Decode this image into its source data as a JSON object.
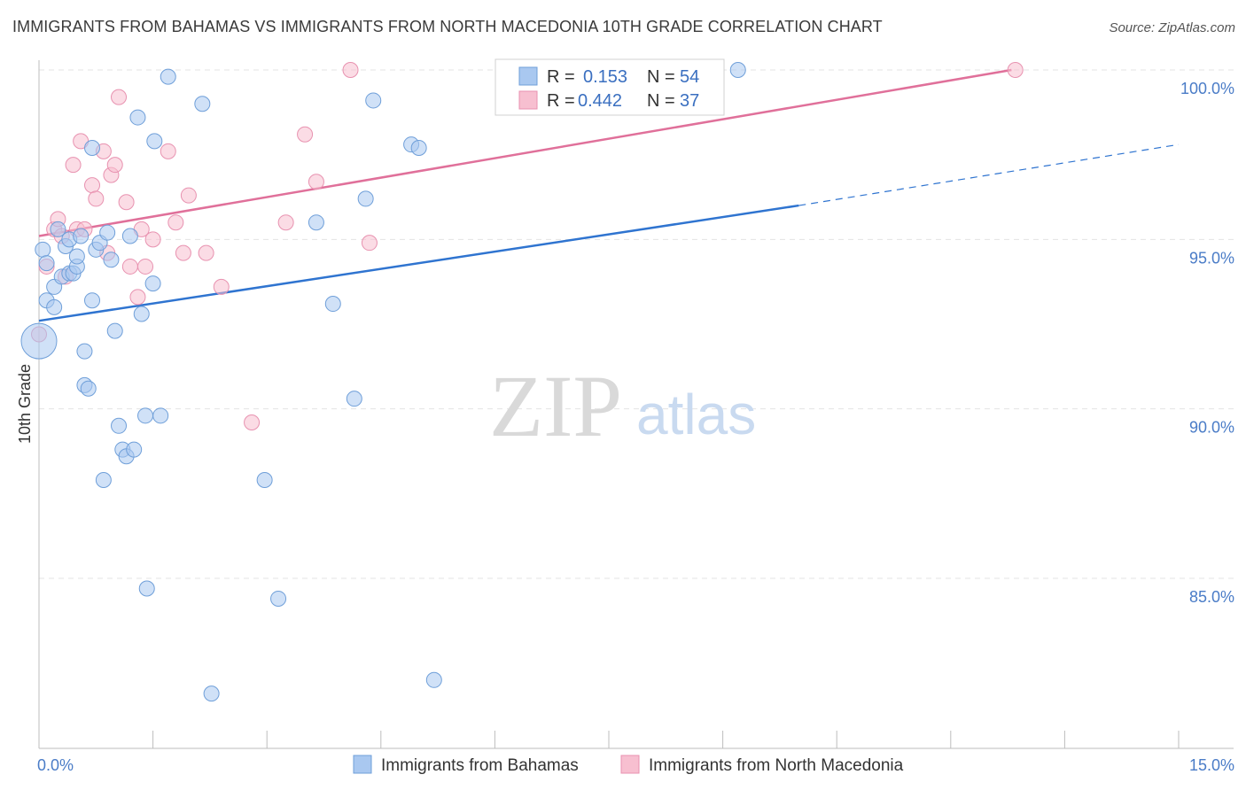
{
  "title": "IMMIGRANTS FROM BAHAMAS VS IMMIGRANTS FROM NORTH MACEDONIA 10TH GRADE CORRELATION CHART",
  "source": "Source: ZipAtlas.com",
  "watermark": {
    "zip": "ZIP",
    "atlas": "atlas"
  },
  "colors": {
    "bahamas_fill": "#a9c8f0",
    "bahamas_stroke": "#6f9fd9",
    "bahamas_line": "#2f74d0",
    "macedonia_fill": "#f7bfd0",
    "macedonia_stroke": "#e892b0",
    "macedonia_line": "#e0709a",
    "tick_label": "#4a7cc7",
    "grid": "#e3e3e3"
  },
  "legend": {
    "rows": [
      {
        "r_label": "R =",
        "r_value": "0.153",
        "n_label": "N =",
        "n_value": "54",
        "series": "bahamas"
      },
      {
        "r_label": "R =",
        "r_value": "0.442",
        "n_label": "N =",
        "n_value": "37",
        "series": "macedonia"
      }
    ]
  },
  "bottom_legend": [
    "Immigrants from Bahamas",
    "Immigrants from North Macedonia"
  ],
  "chart_data": {
    "type": "scatter",
    "title": "IMMIGRANTS FROM BAHAMAS VS IMMIGRANTS FROM NORTH MACEDONIA 10TH GRADE CORRELATION CHART",
    "xlabel": "",
    "ylabel": "10th Grade",
    "xlim": [
      0,
      15
    ],
    "ylim": [
      80.5,
      100.5
    ],
    "x_tick_labels": [
      "0.0%",
      "15.0%"
    ],
    "y_ticks": [
      85,
      90,
      95,
      100
    ],
    "y_tick_labels": [
      "85.0%",
      "90.0%",
      "95.0%",
      "100.0%"
    ],
    "grid": true,
    "series": [
      {
        "name": "Immigrants from Bahamas",
        "color": "#a9c8f0",
        "r": 0.153,
        "n": 54,
        "trend": {
          "x": [
            0,
            10.0
          ],
          "y": [
            92.6,
            96.0
          ],
          "dashed_to": [
            15.0,
            97.8
          ]
        },
        "points": [
          {
            "x": 0.0,
            "y": 92.0,
            "big": true
          },
          {
            "x": 0.05,
            "y": 94.7
          },
          {
            "x": 0.1,
            "y": 94.3
          },
          {
            "x": 0.1,
            "y": 93.2
          },
          {
            "x": 0.2,
            "y": 93.6
          },
          {
            "x": 0.2,
            "y": 93.0
          },
          {
            "x": 0.25,
            "y": 95.3
          },
          {
            "x": 0.3,
            "y": 93.9
          },
          {
            "x": 0.35,
            "y": 94.8
          },
          {
            "x": 0.4,
            "y": 95.0
          },
          {
            "x": 0.4,
            "y": 94.0
          },
          {
            "x": 0.45,
            "y": 94.0
          },
          {
            "x": 0.5,
            "y": 94.2
          },
          {
            "x": 0.5,
            "y": 94.5
          },
          {
            "x": 0.55,
            "y": 95.1
          },
          {
            "x": 0.6,
            "y": 91.7
          },
          {
            "x": 0.6,
            "y": 90.7
          },
          {
            "x": 0.65,
            "y": 90.6
          },
          {
            "x": 0.7,
            "y": 97.7
          },
          {
            "x": 0.7,
            "y": 93.2
          },
          {
            "x": 0.75,
            "y": 94.7
          },
          {
            "x": 0.8,
            "y": 94.9
          },
          {
            "x": 0.85,
            "y": 87.9
          },
          {
            "x": 0.9,
            "y": 95.2
          },
          {
            "x": 0.95,
            "y": 94.4
          },
          {
            "x": 1.0,
            "y": 92.3
          },
          {
            "x": 1.05,
            "y": 89.5
          },
          {
            "x": 1.1,
            "y": 88.8
          },
          {
            "x": 1.15,
            "y": 88.6
          },
          {
            "x": 1.2,
            "y": 95.1
          },
          {
            "x": 1.25,
            "y": 88.8
          },
          {
            "x": 1.3,
            "y": 98.6
          },
          {
            "x": 1.35,
            "y": 92.8
          },
          {
            "x": 1.4,
            "y": 89.8
          },
          {
            "x": 1.42,
            "y": 84.7
          },
          {
            "x": 1.5,
            "y": 93.7
          },
          {
            "x": 1.52,
            "y": 97.9
          },
          {
            "x": 1.6,
            "y": 89.8
          },
          {
            "x": 1.7,
            "y": 99.8
          },
          {
            "x": 2.15,
            "y": 99.0
          },
          {
            "x": 2.27,
            "y": 81.6
          },
          {
            "x": 2.97,
            "y": 87.9
          },
          {
            "x": 3.15,
            "y": 84.4
          },
          {
            "x": 3.65,
            "y": 95.5
          },
          {
            "x": 3.87,
            "y": 93.1
          },
          {
            "x": 4.15,
            "y": 90.3
          },
          {
            "x": 4.3,
            "y": 96.2
          },
          {
            "x": 4.4,
            "y": 99.1
          },
          {
            "x": 4.9,
            "y": 97.8
          },
          {
            "x": 5.0,
            "y": 97.7
          },
          {
            "x": 5.2,
            "y": 82.0
          },
          {
            "x": 6.7,
            "y": 100.0
          },
          {
            "x": 7.0,
            "y": 99.6
          },
          {
            "x": 9.2,
            "y": 100.0
          }
        ]
      },
      {
        "name": "Immigrants from North Macedonia",
        "color": "#f7bfd0",
        "r": 0.442,
        "n": 37,
        "trend": {
          "x": [
            0,
            12.8
          ],
          "y": [
            95.1,
            100.0
          ]
        },
        "points": [
          {
            "x": 0.0,
            "y": 92.2
          },
          {
            "x": 0.1,
            "y": 94.2
          },
          {
            "x": 0.2,
            "y": 95.3
          },
          {
            "x": 0.25,
            "y": 95.6
          },
          {
            "x": 0.3,
            "y": 95.1
          },
          {
            "x": 0.35,
            "y": 93.9
          },
          {
            "x": 0.45,
            "y": 97.2
          },
          {
            "x": 0.5,
            "y": 95.3
          },
          {
            "x": 0.55,
            "y": 97.9
          },
          {
            "x": 0.6,
            "y": 95.3
          },
          {
            "x": 0.7,
            "y": 96.6
          },
          {
            "x": 0.75,
            "y": 96.2
          },
          {
            "x": 0.85,
            "y": 97.6
          },
          {
            "x": 0.9,
            "y": 94.6
          },
          {
            "x": 0.95,
            "y": 96.9
          },
          {
            "x": 1.0,
            "y": 97.2
          },
          {
            "x": 1.05,
            "y": 99.2
          },
          {
            "x": 1.15,
            "y": 96.1
          },
          {
            "x": 1.2,
            "y": 94.2
          },
          {
            "x": 1.3,
            "y": 93.3
          },
          {
            "x": 1.35,
            "y": 95.3
          },
          {
            "x": 1.4,
            "y": 94.2
          },
          {
            "x": 1.5,
            "y": 95.0
          },
          {
            "x": 1.7,
            "y": 97.6
          },
          {
            "x": 1.8,
            "y": 95.5
          },
          {
            "x": 1.9,
            "y": 94.6
          },
          {
            "x": 1.97,
            "y": 96.3
          },
          {
            "x": 2.2,
            "y": 94.6
          },
          {
            "x": 2.4,
            "y": 93.6
          },
          {
            "x": 2.8,
            "y": 89.6
          },
          {
            "x": 3.25,
            "y": 95.5
          },
          {
            "x": 3.5,
            "y": 98.1
          },
          {
            "x": 3.65,
            "y": 96.7
          },
          {
            "x": 4.1,
            "y": 100.0
          },
          {
            "x": 4.35,
            "y": 94.9
          },
          {
            "x": 8.1,
            "y": 100.0
          },
          {
            "x": 12.85,
            "y": 100.0
          }
        ]
      }
    ]
  }
}
